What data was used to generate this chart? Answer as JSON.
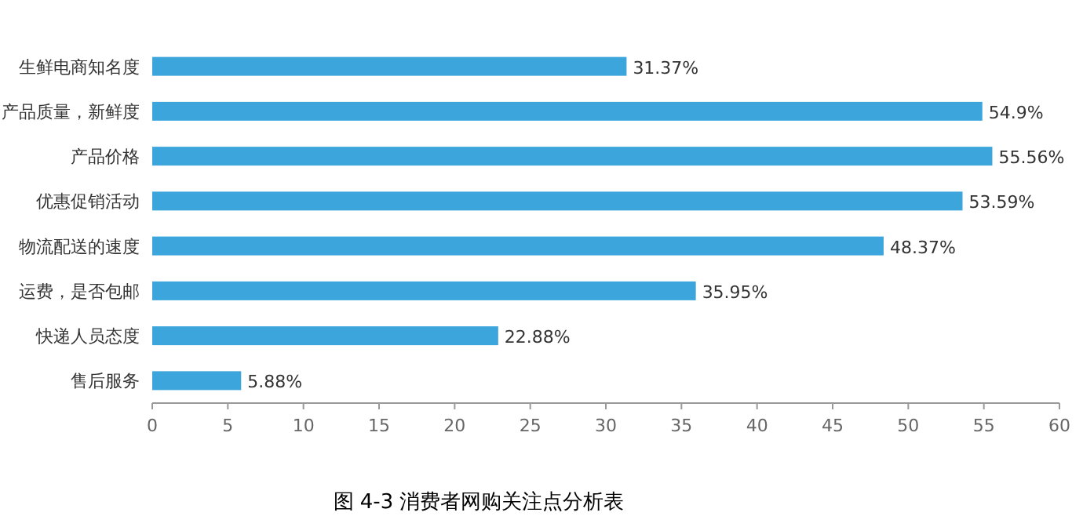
{
  "chart_data": {
    "type": "bar",
    "orientation": "horizontal",
    "categories": [
      "生鲜电商知名度",
      "产品质量，新鲜度",
      "产品价格",
      "优惠促销活动",
      "物流配送的速度",
      "运费，是否包邮",
      "快递人员态度",
      "售后服务"
    ],
    "values": [
      31.37,
      54.9,
      55.56,
      53.59,
      48.37,
      35.95,
      22.88,
      5.88
    ],
    "value_labels": [
      "31.37%",
      "54.9%",
      "55.56%",
      "53.59%",
      "48.37%",
      "35.95%",
      "22.88%",
      "5.88%"
    ],
    "color": "#3ba5dc",
    "xlim": [
      0,
      60
    ],
    "xticks": [
      0,
      5,
      10,
      15,
      20,
      25,
      30,
      35,
      40,
      45,
      50,
      55,
      60
    ],
    "grid": false,
    "annotations": [
      "图 4-3 消费者网购关注点分析表"
    ]
  }
}
